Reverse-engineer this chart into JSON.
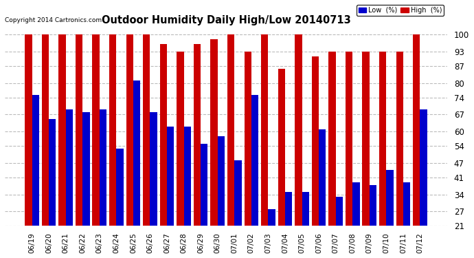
{
  "title": "Outdoor Humidity Daily High/Low 20140713",
  "copyright": "Copyright 2014 Cartronics.com",
  "dates": [
    "06/19",
    "06/20",
    "06/21",
    "06/22",
    "06/23",
    "06/24",
    "06/25",
    "06/26",
    "06/27",
    "06/28",
    "06/29",
    "06/30",
    "07/01",
    "07/02",
    "07/03",
    "07/04",
    "07/05",
    "07/06",
    "07/07",
    "07/08",
    "07/09",
    "07/10",
    "07/11",
    "07/12"
  ],
  "high_values": [
    100,
    100,
    100,
    100,
    100,
    100,
    100,
    100,
    96,
    93,
    96,
    98,
    100,
    93,
    100,
    86,
    100,
    91,
    93,
    93,
    93,
    93,
    93,
    100
  ],
  "low_values": [
    75,
    65,
    69,
    68,
    69,
    53,
    81,
    68,
    62,
    62,
    55,
    58,
    48,
    75,
    28,
    35,
    35,
    61,
    33,
    39,
    38,
    44,
    39,
    69
  ],
  "bg_color": "#ffffff",
  "plot_bg_color": "#ffffff",
  "bar_color_high": "#cc0000",
  "bar_color_low": "#0000cc",
  "grid_color": "#bbbbbb",
  "yticks": [
    21,
    27,
    34,
    41,
    47,
    54,
    60,
    67,
    74,
    80,
    87,
    93,
    100
  ],
  "ylim": [
    21,
    103
  ],
  "ymin": 21,
  "legend_low_label": "Low  (%)",
  "legend_high_label": "High  (%)"
}
